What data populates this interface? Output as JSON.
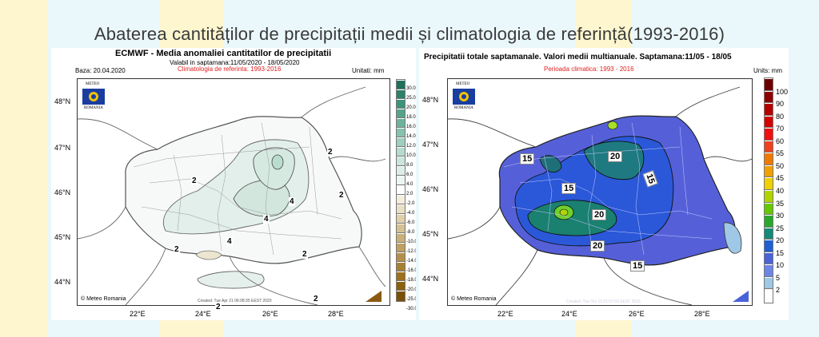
{
  "slide_title": "Abaterea cantităților de precipitații medii și climatologia de referință(1993-2016)",
  "left_panel": {
    "title": "ECMWF  - Media anomaliei cantitatilor de precipitatii",
    "valid": "Valabil in saptamana:11/05/2020 - 18/05/2020",
    "base": "Baza: 20.04.2020",
    "reference": "Climatologia de referinta: 1993-2016",
    "units": "Unitati: mm",
    "lat_labels": [
      "48°N",
      "47°N",
      "46°N",
      "45°N",
      "44°N"
    ],
    "lon_labels": [
      "22°E",
      "24°E",
      "26°E",
      "28°E"
    ],
    "contour_labels": [
      "2",
      "2",
      "2",
      "4",
      "4",
      "4",
      "2",
      "2",
      "2",
      "2"
    ],
    "colorbar": {
      "values": [
        "30.0",
        "25.0",
        "20.0",
        "18.0",
        "16.0",
        "14.0",
        "12.0",
        "10.0",
        "8.0",
        "6.0",
        "4.0",
        "2.0",
        "-2.0",
        "-4.0",
        "-6.0",
        "-8.0",
        "-10.0",
        "-12.0",
        "-14.0",
        "-16.0",
        "-18.0",
        "-20.0",
        "-25.0",
        "-30.0"
      ],
      "colors": [
        "#1f6f5a",
        "#2e8069",
        "#3e9279",
        "#55a38b",
        "#6db39c",
        "#86c2ae",
        "#9ecfbf",
        "#b5dbce",
        "#c9e5dc",
        "#dceee8",
        "#edf6f3",
        "#ffffff",
        "#f3eddc",
        "#e9dfc4",
        "#dfd0ab",
        "#d4c093",
        "#c9b07a",
        "#bea062",
        "#b3904a",
        "#a88032",
        "#9c701c",
        "#8c5f0c",
        "#7a5008"
      ]
    },
    "logo_text": "METEO",
    "logo_sub": "ROMANIA",
    "footer_left": "© Meteo Romania",
    "footer_created": "Created: Tue Apr 21 06:08:35 EEST 2020"
  },
  "right_panel": {
    "title": "Precipitatii totale saptamanale. Valori medii multianuale. Saptamana:11/05 - 18/05",
    "period": "Perioada climatica: 1993 - 2016",
    "units": "Units: mm",
    "lat_labels": [
      "48°N",
      "47°N",
      "46°N",
      "45°N",
      "44°N"
    ],
    "lon_labels": [
      "22°E",
      "24°E",
      "26°E",
      "28°E"
    ],
    "contour_labels": [
      "15",
      "15",
      "20",
      "15",
      "20",
      "20",
      "15"
    ],
    "colorbar": {
      "values": [
        "100",
        "90",
        "80",
        "70",
        "60",
        "55",
        "50",
        "45",
        "40",
        "35",
        "30",
        "25",
        "20",
        "15",
        "10",
        "5",
        "2"
      ],
      "colors": [
        "#6b0000",
        "#8b0000",
        "#b50000",
        "#d40000",
        "#f01010",
        "#f04020",
        "#f07a00",
        "#f0a000",
        "#f0d000",
        "#b0d400",
        "#66c800",
        "#2aa82a",
        "#158a7a",
        "#1f5fd4",
        "#4a63d8",
        "#6d86e6",
        "#9ec8e6",
        "#ffffff"
      ]
    },
    "logo_text": "METEO",
    "logo_sub": "ROMANIA",
    "footer_left": "© Meteo Romania",
    "footer_created": "Created: Tue Oct 13 01:07:02 EEST 2016"
  }
}
